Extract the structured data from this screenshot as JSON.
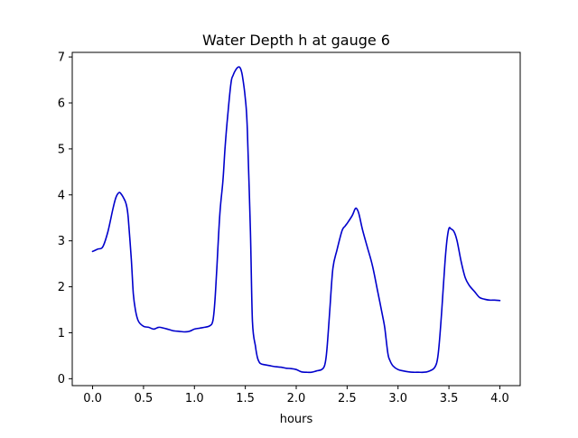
{
  "chart_data": {
    "type": "line",
    "title": "Water Depth h at gauge 6",
    "xlabel": "hours",
    "ylabel": "",
    "xlim": [
      -0.2,
      4.2
    ],
    "ylim": [
      -0.15,
      7.1
    ],
    "xticks": [
      0.0,
      0.5,
      1.0,
      1.5,
      2.0,
      2.5,
      3.0,
      3.5,
      4.0
    ],
    "xtick_labels": [
      "0.0",
      "0.5",
      "1.0",
      "1.5",
      "2.0",
      "2.5",
      "3.0",
      "3.5",
      "4.0"
    ],
    "yticks": [
      0,
      1,
      2,
      3,
      4,
      5,
      6,
      7
    ],
    "ytick_labels": [
      "0",
      "1",
      "2",
      "3",
      "4",
      "5",
      "6",
      "7"
    ],
    "grid": false,
    "series": [
      {
        "color": "#0000cc",
        "x": [
          0.0,
          0.05,
          0.1,
          0.15,
          0.2,
          0.23,
          0.26,
          0.28,
          0.3,
          0.33,
          0.35,
          0.38,
          0.4,
          0.42,
          0.45,
          0.5,
          0.55,
          0.6,
          0.65,
          0.7,
          0.75,
          0.8,
          0.85,
          0.9,
          0.95,
          1.0,
          1.05,
          1.1,
          1.15,
          1.18,
          1.2,
          1.22,
          1.25,
          1.28,
          1.3,
          1.33,
          1.36,
          1.38,
          1.4,
          1.43,
          1.45,
          1.47,
          1.5,
          1.52,
          1.55,
          1.57,
          1.6,
          1.62,
          1.64,
          1.66,
          1.7,
          1.75,
          1.8,
          1.85,
          1.9,
          1.95,
          2.0,
          2.05,
          2.1,
          2.15,
          2.2,
          2.25,
          2.28,
          2.3,
          2.33,
          2.36,
          2.4,
          2.45,
          2.48,
          2.5,
          2.55,
          2.58,
          2.6,
          2.62,
          2.65,
          2.7,
          2.75,
          2.8,
          2.85,
          2.87,
          2.9,
          2.92,
          2.95,
          3.0,
          3.05,
          3.1,
          3.15,
          3.2,
          3.25,
          3.3,
          3.35,
          3.38,
          3.4,
          3.43,
          3.46,
          3.48,
          3.5,
          3.52,
          3.55,
          3.58,
          3.62,
          3.66,
          3.7,
          3.75,
          3.8,
          3.85,
          3.9,
          3.95,
          4.0
        ],
        "y": [
          2.77,
          2.82,
          2.87,
          3.2,
          3.7,
          3.95,
          4.05,
          4.02,
          3.95,
          3.8,
          3.5,
          2.6,
          1.85,
          1.5,
          1.25,
          1.14,
          1.12,
          1.08,
          1.12,
          1.1,
          1.07,
          1.04,
          1.03,
          1.02,
          1.03,
          1.08,
          1.1,
          1.12,
          1.15,
          1.25,
          1.65,
          2.4,
          3.6,
          4.3,
          5.0,
          5.8,
          6.45,
          6.6,
          6.7,
          6.78,
          6.76,
          6.6,
          6.1,
          5.4,
          3.2,
          1.25,
          0.7,
          0.45,
          0.35,
          0.32,
          0.3,
          0.28,
          0.26,
          0.25,
          0.23,
          0.22,
          0.2,
          0.15,
          0.14,
          0.14,
          0.17,
          0.2,
          0.3,
          0.6,
          1.5,
          2.4,
          2.8,
          3.22,
          3.32,
          3.38,
          3.55,
          3.7,
          3.68,
          3.55,
          3.25,
          2.85,
          2.45,
          1.9,
          1.35,
          1.1,
          0.55,
          0.4,
          0.28,
          0.2,
          0.17,
          0.15,
          0.14,
          0.14,
          0.14,
          0.16,
          0.22,
          0.35,
          0.65,
          1.5,
          2.5,
          3.0,
          3.27,
          3.26,
          3.2,
          3.0,
          2.55,
          2.2,
          2.03,
          1.9,
          1.77,
          1.73,
          1.71,
          1.71,
          1.7
        ]
      }
    ]
  }
}
